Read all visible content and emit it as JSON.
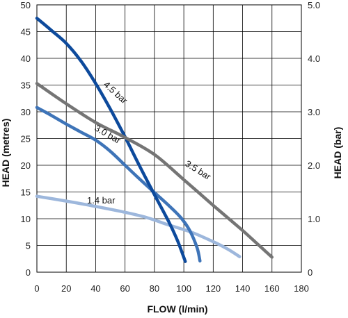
{
  "chart_data": {
    "type": "line",
    "xlabel": "FLOW (l/min)",
    "ylabel": "HEAD (metres)",
    "y2label": "HEAD (bar)",
    "xlim": [
      0,
      180
    ],
    "ylim": [
      0,
      50
    ],
    "y2lim": [
      0,
      5
    ],
    "x_ticks": [
      "0",
      "20",
      "40",
      "60",
      "80",
      "100",
      "120",
      "140",
      "160",
      "180"
    ],
    "y_ticks": [
      "0",
      "5",
      "10",
      "15",
      "20",
      "25",
      "30",
      "35",
      "40",
      "45",
      "50"
    ],
    "y2_ticks": [
      "0",
      "1.0",
      "2.0",
      "3.0",
      "4.0",
      "5.0"
    ],
    "grid": true,
    "series": [
      {
        "name": "1.4 bar",
        "color": "#9db7dc",
        "points": [
          [
            0,
            14.2
          ],
          [
            20,
            13.3
          ],
          [
            40,
            12.3
          ],
          [
            60,
            11.2
          ],
          [
            75,
            10.2
          ],
          [
            90,
            8.8
          ],
          [
            105,
            7.5
          ],
          [
            120,
            5.7
          ],
          [
            130,
            4.3
          ],
          [
            138,
            2.9
          ]
        ]
      },
      {
        "name": "3.0 bar",
        "color": "#3e74b8",
        "points": [
          [
            0,
            30.8
          ],
          [
            10,
            29.3
          ],
          [
            20,
            27.7
          ],
          [
            30,
            26.2
          ],
          [
            40,
            24.7
          ],
          [
            50,
            22.6
          ],
          [
            60,
            20
          ],
          [
            70,
            17.4
          ],
          [
            80,
            14.9
          ],
          [
            90,
            12.4
          ],
          [
            98,
            10.2
          ],
          [
            104,
            7.8
          ],
          [
            109,
            4.6
          ],
          [
            111,
            2.1
          ]
        ]
      },
      {
        "name": "4.5 bar",
        "color": "#0d4a9c",
        "points": [
          [
            0,
            47.5
          ],
          [
            10,
            45.2
          ],
          [
            20,
            42.8
          ],
          [
            30,
            39.5
          ],
          [
            40,
            35.3
          ],
          [
            50,
            30.5
          ],
          [
            60,
            25.3
          ],
          [
            70,
            19.8
          ],
          [
            80,
            14.5
          ],
          [
            90,
            9.3
          ],
          [
            96,
            5.7
          ],
          [
            101,
            2
          ]
        ]
      },
      {
        "name": "3.5 bar",
        "color": "#757575",
        "points": [
          [
            0,
            35.3
          ],
          [
            20,
            31.5
          ],
          [
            40,
            28
          ],
          [
            60,
            25.2
          ],
          [
            80,
            22
          ],
          [
            100,
            17.3
          ],
          [
            120,
            12.5
          ],
          [
            140,
            7.8
          ],
          [
            150,
            5.3
          ],
          [
            160,
            2.8
          ]
        ]
      }
    ],
    "labels": [
      {
        "text": "1.4 bar",
        "series": "1.4 bar"
      },
      {
        "text": "3.0 bar",
        "series": "3.0 bar"
      },
      {
        "text": "4.5 bar",
        "series": "4.5 bar"
      },
      {
        "text": "3.5 bar",
        "series": "3.5 bar"
      }
    ]
  }
}
